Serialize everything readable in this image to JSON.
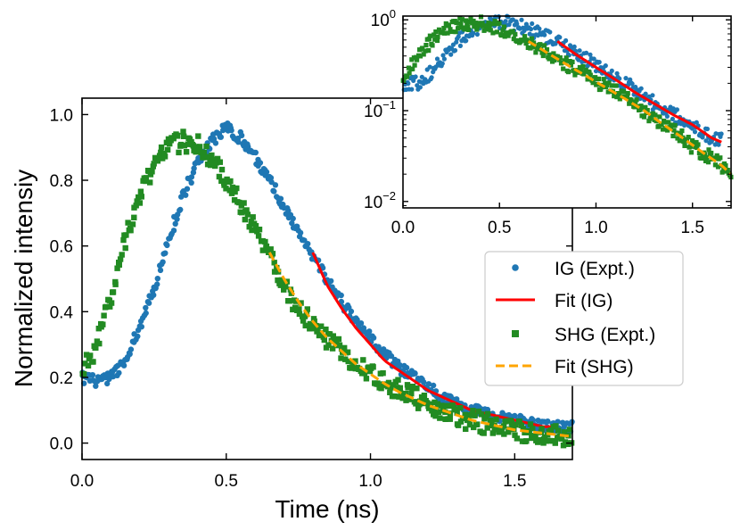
{
  "chart_data": [
    {
      "type": "scatter",
      "panel": "main",
      "xlabel": "Time (ns)",
      "ylabel": "Normalized intensiy",
      "xlim": [
        0.0,
        1.7
      ],
      "ylim": [
        -0.05,
        1.05
      ],
      "yscale": "linear",
      "xticks": [
        "0.0",
        "0.5",
        "1.0",
        "1.5"
      ],
      "yticks": [
        "0.0",
        "0.2",
        "0.4",
        "0.6",
        "0.8",
        "1.0"
      ],
      "grid": false,
      "legend_position": "right",
      "series": [
        {
          "name": "IG (Expt.)",
          "kind": "markers",
          "marker": "circle",
          "color": "#1f77b4",
          "x": [
            0.0,
            0.05,
            0.1,
            0.15,
            0.2,
            0.25,
            0.3,
            0.35,
            0.4,
            0.45,
            0.5,
            0.55,
            0.6,
            0.65,
            0.7,
            0.75,
            0.8,
            0.85,
            0.9,
            0.95,
            1.0,
            1.05,
            1.1,
            1.15,
            1.2,
            1.25,
            1.3,
            1.35,
            1.4,
            1.45,
            1.5,
            1.55,
            1.6,
            1.65,
            1.7
          ],
          "y": [
            0.2,
            0.19,
            0.2,
            0.25,
            0.35,
            0.47,
            0.62,
            0.75,
            0.85,
            0.92,
            0.96,
            0.93,
            0.87,
            0.8,
            0.72,
            0.64,
            0.57,
            0.5,
            0.43,
            0.37,
            0.32,
            0.27,
            0.23,
            0.2,
            0.17,
            0.14,
            0.12,
            0.1,
            0.09,
            0.08,
            0.07,
            0.06,
            0.05,
            0.05,
            0.05
          ]
        },
        {
          "name": "Fit (IG)",
          "kind": "line",
          "color": "#ff0000",
          "x": [
            0.8,
            0.85,
            0.9,
            0.95,
            1.0,
            1.05,
            1.1,
            1.15,
            1.2,
            1.25,
            1.3,
            1.35,
            1.4,
            1.45,
            1.5,
            1.55,
            1.6,
            1.65
          ],
          "y": [
            0.58,
            0.48,
            0.41,
            0.35,
            0.3,
            0.25,
            0.22,
            0.19,
            0.16,
            0.14,
            0.12,
            0.1,
            0.09,
            0.08,
            0.07,
            0.06,
            0.05,
            0.05
          ]
        },
        {
          "name": "SHG (Expt.)",
          "kind": "markers",
          "marker": "square",
          "color": "#228b22",
          "x": [
            0.0,
            0.05,
            0.1,
            0.15,
            0.2,
            0.25,
            0.3,
            0.35,
            0.4,
            0.45,
            0.5,
            0.55,
            0.6,
            0.65,
            0.7,
            0.75,
            0.8,
            0.85,
            0.9,
            0.95,
            1.0,
            1.05,
            1.1,
            1.15,
            1.2,
            1.25,
            1.3,
            1.35,
            1.4,
            1.45,
            1.5,
            1.55,
            1.6,
            1.65,
            1.7
          ],
          "y": [
            0.22,
            0.3,
            0.45,
            0.62,
            0.75,
            0.85,
            0.9,
            0.92,
            0.91,
            0.86,
            0.8,
            0.73,
            0.65,
            0.57,
            0.48,
            0.41,
            0.36,
            0.32,
            0.28,
            0.24,
            0.21,
            0.18,
            0.16,
            0.14,
            0.12,
            0.1,
            0.08,
            0.07,
            0.06,
            0.05,
            0.04,
            0.03,
            0.03,
            0.02,
            0.02
          ]
        },
        {
          "name": "Fit (SHG)",
          "kind": "dashed-line",
          "color": "#ffa500",
          "x": [
            0.65,
            0.7,
            0.75,
            0.8,
            0.85,
            0.9,
            0.95,
            1.0,
            1.05,
            1.1,
            1.15,
            1.2,
            1.25,
            1.3,
            1.35,
            1.4,
            1.45,
            1.5,
            1.55,
            1.6,
            1.65,
            1.7
          ],
          "y": [
            0.58,
            0.5,
            0.43,
            0.37,
            0.32,
            0.28,
            0.24,
            0.21,
            0.18,
            0.155,
            0.135,
            0.115,
            0.1,
            0.085,
            0.07,
            0.06,
            0.05,
            0.04,
            0.035,
            0.03,
            0.025,
            0.02
          ]
        }
      ]
    },
    {
      "type": "scatter",
      "panel": "inset",
      "xlabel": "",
      "ylabel": "",
      "xlim": [
        0.0,
        1.7
      ],
      "ylim": [
        0.0085,
        1.1
      ],
      "yscale": "log",
      "xticks": [
        "0.0",
        "0.5",
        "1.0",
        "1.5"
      ],
      "yticks": [
        {
          "base": "10",
          "exp": "0",
          "value": 1
        },
        {
          "base": "10",
          "exp": "−1",
          "value": 0.1
        },
        {
          "base": "10",
          "exp": "−2",
          "value": 0.01
        }
      ],
      "grid": false,
      "series": [
        {
          "name": "IG (Expt.)",
          "kind": "markers",
          "marker": "circle",
          "color": "#1f77b4",
          "x": [
            0.0,
            0.1,
            0.2,
            0.3,
            0.4,
            0.5,
            0.6,
            0.7,
            0.8,
            0.9,
            1.0,
            1.1,
            1.2,
            1.3,
            1.4,
            1.5,
            1.6,
            1.65
          ],
          "y": [
            0.2,
            0.2,
            0.35,
            0.62,
            0.85,
            0.96,
            0.87,
            0.72,
            0.57,
            0.43,
            0.32,
            0.23,
            0.17,
            0.12,
            0.09,
            0.07,
            0.05,
            0.05
          ]
        },
        {
          "name": "Fit (IG)",
          "kind": "line",
          "color": "#ff0000",
          "x": [
            0.8,
            0.9,
            1.0,
            1.1,
            1.2,
            1.3,
            1.4,
            1.5,
            1.6,
            1.65
          ],
          "y": [
            0.58,
            0.41,
            0.3,
            0.22,
            0.16,
            0.12,
            0.09,
            0.07,
            0.05,
            0.045
          ]
        },
        {
          "name": "SHG (Expt.)",
          "kind": "markers",
          "marker": "square",
          "color": "#228b22",
          "x": [
            0.0,
            0.1,
            0.2,
            0.3,
            0.4,
            0.5,
            0.6,
            0.7,
            0.8,
            0.9,
            1.0,
            1.1,
            1.2,
            1.3,
            1.4,
            1.5,
            1.6,
            1.7
          ],
          "y": [
            0.22,
            0.45,
            0.75,
            0.9,
            0.91,
            0.8,
            0.65,
            0.48,
            0.36,
            0.28,
            0.21,
            0.16,
            0.12,
            0.08,
            0.06,
            0.04,
            0.03,
            0.02
          ]
        },
        {
          "name": "Fit (SHG)",
          "kind": "dashed-line",
          "color": "#ffa500",
          "x": [
            0.65,
            0.75,
            0.85,
            0.95,
            1.05,
            1.15,
            1.25,
            1.35,
            1.45,
            1.55,
            1.65,
            1.7
          ],
          "y": [
            0.58,
            0.43,
            0.32,
            0.24,
            0.18,
            0.135,
            0.1,
            0.07,
            0.05,
            0.035,
            0.025,
            0.02
          ]
        }
      ]
    }
  ]
}
